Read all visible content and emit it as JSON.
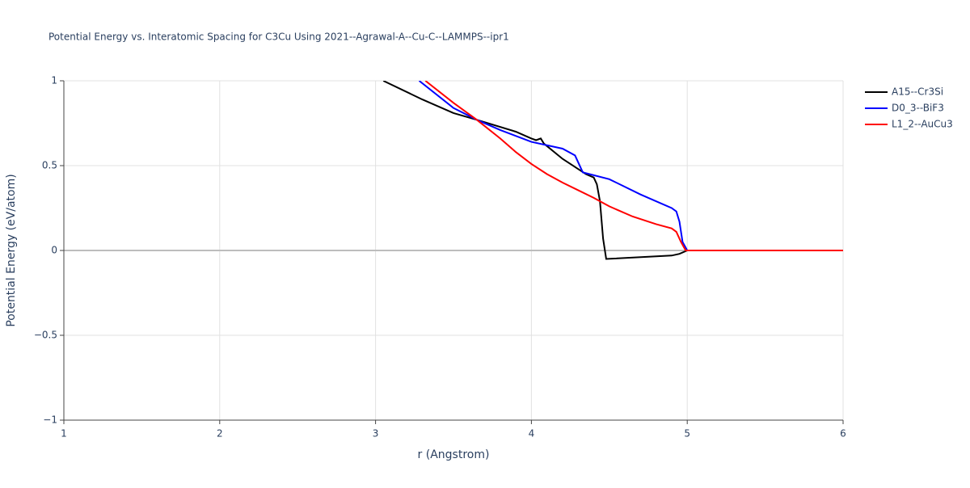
{
  "chart_data": {
    "type": "line",
    "title": "Potential Energy vs. Interatomic Spacing for C3Cu Using 2021--Agrawal-A--Cu-C--LAMMPS--ipr1",
    "x_label": "r (Angstrom)",
    "y_label": "Potential Energy (eV/atom)",
    "xlim": [
      1,
      6
    ],
    "ylim": [
      -1,
      1
    ],
    "xticks": [
      1,
      2,
      3,
      4,
      5,
      6
    ],
    "yticks": [
      {
        "value": -1,
        "label": "−1"
      },
      {
        "value": -0.5,
        "label": "−0.5"
      },
      0,
      0.5,
      1
    ],
    "grid": true,
    "legend": "right",
    "series": [
      {
        "name": "A15--Cr3Si",
        "color": "#000000",
        "x": [
          3.05,
          3.3,
          3.5,
          3.65,
          3.9,
          4.0,
          4.03,
          4.06,
          4.08,
          4.2,
          4.3,
          4.35,
          4.4,
          4.42,
          4.44,
          4.46,
          4.48,
          4.9,
          4.95,
          5.0,
          6.0
        ],
        "values": [
          1.0,
          0.89,
          0.81,
          0.77,
          0.7,
          0.66,
          0.65,
          0.66,
          0.63,
          0.54,
          0.48,
          0.45,
          0.43,
          0.39,
          0.29,
          0.07,
          -0.05,
          -0.03,
          -0.02,
          0,
          0
        ]
      },
      {
        "name": "D0_3--BiF3",
        "color": "#0000ff",
        "x": [
          3.28,
          3.5,
          3.65,
          3.8,
          4.0,
          4.2,
          4.28,
          4.3,
          4.33,
          4.5,
          4.7,
          4.9,
          4.93,
          4.95,
          4.97,
          5.0,
          6.0
        ],
        "values": [
          1.0,
          0.84,
          0.77,
          0.71,
          0.64,
          0.6,
          0.56,
          0.52,
          0.46,
          0.42,
          0.33,
          0.25,
          0.23,
          0.17,
          0.05,
          0,
          0
        ]
      },
      {
        "name": "L1_2--AuCu3",
        "color": "#ff0000",
        "x": [
          3.32,
          3.5,
          3.65,
          3.8,
          3.9,
          4.0,
          4.1,
          4.2,
          4.3,
          4.4,
          4.5,
          4.65,
          4.8,
          4.9,
          4.93,
          4.96,
          4.99,
          6.0
        ],
        "values": [
          1.0,
          0.87,
          0.77,
          0.66,
          0.58,
          0.51,
          0.45,
          0.4,
          0.355,
          0.31,
          0.26,
          0.2,
          0.155,
          0.13,
          0.11,
          0.05,
          0,
          0
        ]
      }
    ]
  }
}
